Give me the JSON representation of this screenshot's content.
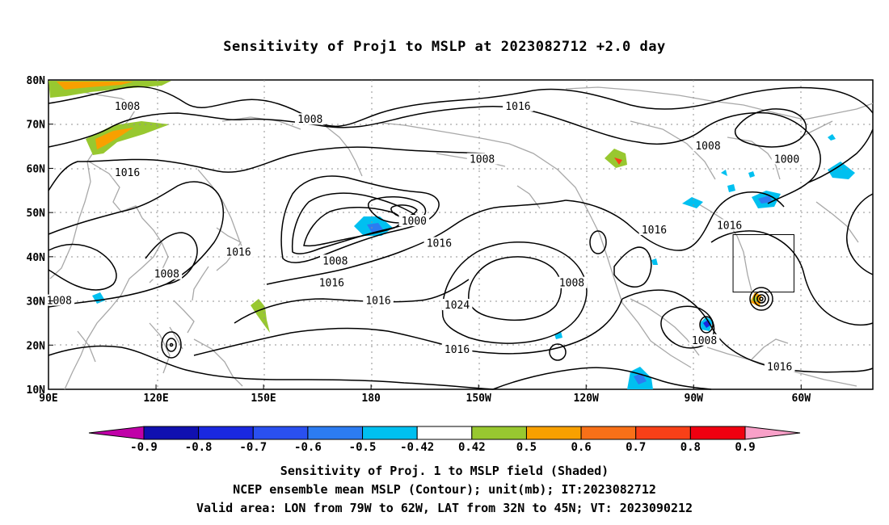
{
  "title": "Sensitivity of Proj1 to MSLP at 2023082712 +2.0 day",
  "map": {
    "lat_labels": [
      "80N",
      "70N",
      "60N",
      "50N",
      "40N",
      "30N",
      "20N",
      "10N"
    ],
    "lon_labels": [
      "90E",
      "120E",
      "150E",
      "180",
      "150W",
      "120W",
      "90W",
      "60W"
    ],
    "contour_labels": [
      {
        "text": "1008",
        "lon": 112,
        "lat": 74
      },
      {
        "text": "1008",
        "lon": 163,
        "lat": 71
      },
      {
        "text": "1016",
        "lon": 221,
        "lat": 74
      },
      {
        "text": "1008",
        "lon": 274,
        "lat": 65
      },
      {
        "text": "1000",
        "lon": 296,
        "lat": 62
      },
      {
        "text": "1016",
        "lon": 112,
        "lat": 59
      },
      {
        "text": "1008",
        "lon": 211,
        "lat": 62
      },
      {
        "text": "1000",
        "lon": 192,
        "lat": 48
      },
      {
        "text": "1016",
        "lon": 259,
        "lat": 46
      },
      {
        "text": "1016",
        "lon": 280,
        "lat": 47
      },
      {
        "text": "1016",
        "lon": 143,
        "lat": 41
      },
      {
        "text": "1016",
        "lon": 199,
        "lat": 43
      },
      {
        "text": "1008",
        "lon": 170,
        "lat": 39
      },
      {
        "text": "1016",
        "lon": 169,
        "lat": 34
      },
      {
        "text": "1008",
        "lon": 123,
        "lat": 36
      },
      {
        "text": "1008",
        "lon": 236,
        "lat": 34
      },
      {
        "text": "1008",
        "lon": 93,
        "lat": 30
      },
      {
        "text": "1016",
        "lon": 182,
        "lat": 30
      },
      {
        "text": "1024",
        "lon": 204,
        "lat": 29
      },
      {
        "text": "1008",
        "lon": 273,
        "lat": 21
      },
      {
        "text": "1016",
        "lon": 204,
        "lat": 19
      },
      {
        "text": "1016",
        "lon": 294,
        "lat": 15
      }
    ],
    "valid_box": {
      "lon_min": 281,
      "lon_max": 298,
      "lat_min": 32,
      "lat_max": 45
    }
  },
  "colorbar": {
    "labels": [
      "-0.9",
      "-0.8",
      "-0.7",
      "-0.6",
      "-0.5",
      "-0.42",
      "0.42",
      "0.5",
      "0.6",
      "0.7",
      "0.8",
      "0.9"
    ],
    "colors": [
      "#c000a8",
      "#1010b0",
      "#1a28e0",
      "#2a50f0",
      "#2c7cf2",
      "#00c0f0",
      "#ffffff",
      "#98c830",
      "#f8a000",
      "#f87018",
      "#f84018",
      "#f00010",
      "#f8a0c8"
    ]
  },
  "footer": {
    "line1": "Sensitivity of Proj. 1 to MSLP field (Shaded)",
    "line2": "NCEP ensemble mean MSLP (Contour); unit(mb); IT:2023082712",
    "line3": "Valid area: LON from 79W to 62W, LAT from 32N to 45N; VT: 2023090212"
  }
}
